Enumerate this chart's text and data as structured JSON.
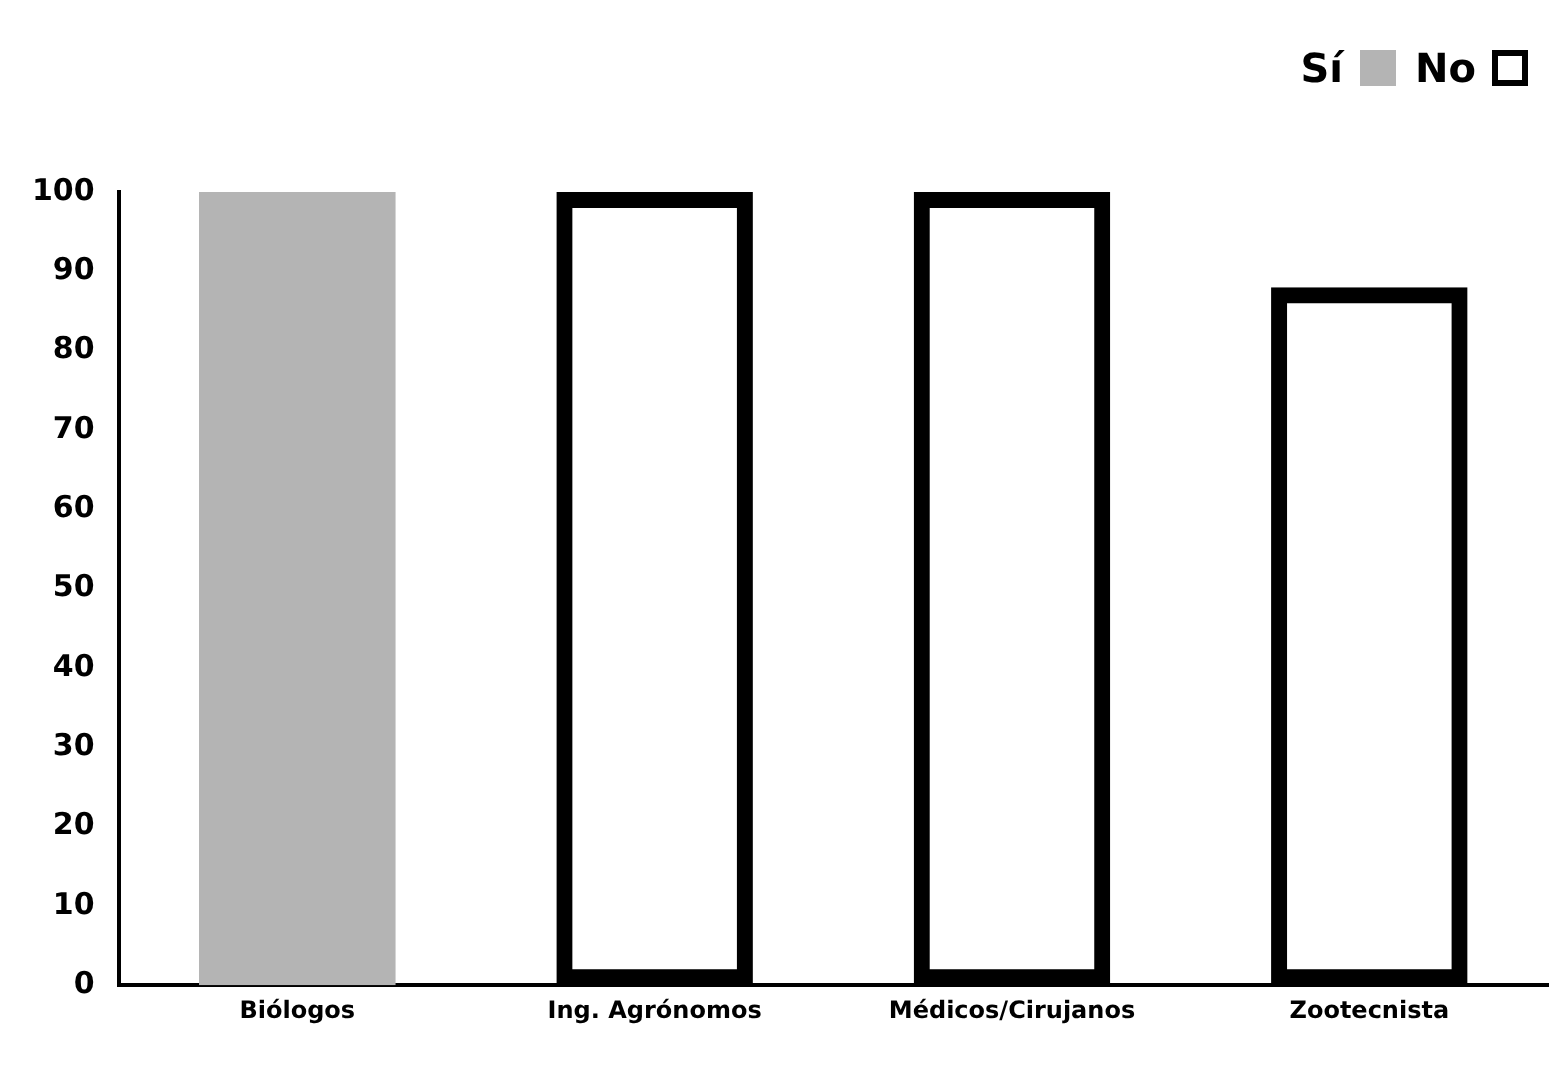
{
  "chart_data": {
    "type": "bar",
    "stacked": true,
    "categories": [
      "Biólogos",
      "Ing. Agrónomos",
      "Médicos/Cirujanos",
      "Zootecnista"
    ],
    "series": [
      {
        "name": "Sí",
        "color": "#b4b4b4",
        "values": [
          100,
          null,
          null,
          null
        ]
      },
      {
        "name": "No",
        "color": "#000000",
        "values": [
          null,
          100,
          100,
          88
        ]
      }
    ],
    "ylim": [
      0,
      100
    ],
    "yticks": [
      0,
      10,
      20,
      30,
      40,
      50,
      60,
      70,
      80,
      90,
      100
    ],
    "grid": false,
    "legend": "top right"
  }
}
